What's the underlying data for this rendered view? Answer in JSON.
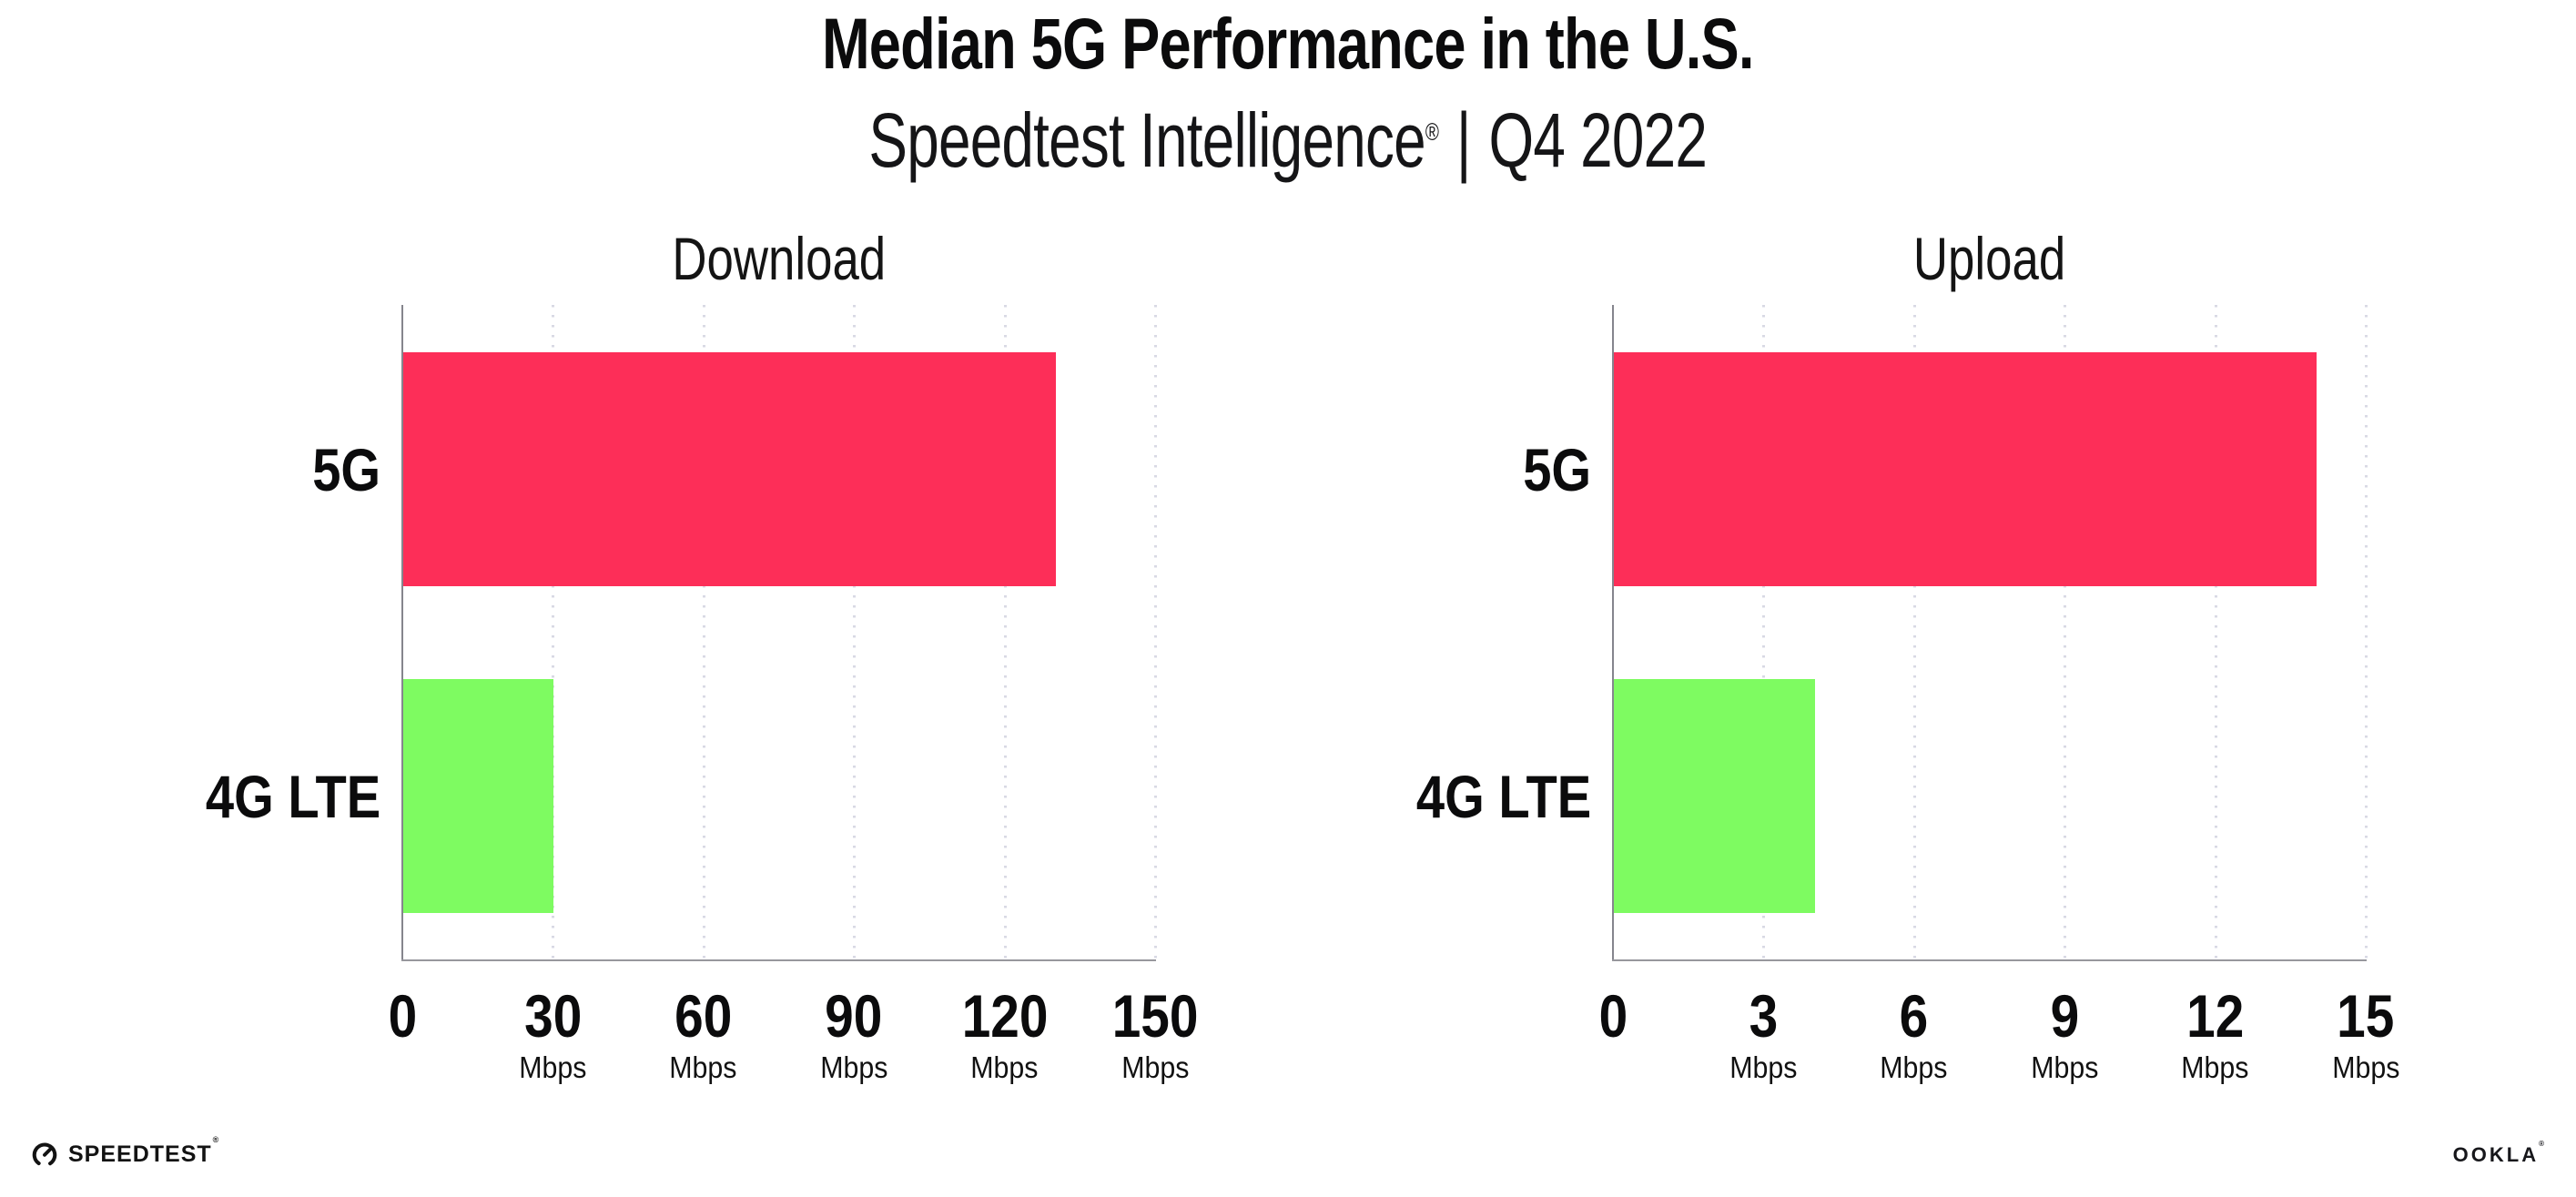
{
  "header": {
    "title": "Median 5G Performance in the U.S.",
    "subtitle_brand": "Speedtest Intelligence",
    "subtitle_reg_mark": "®",
    "subtitle_separator": "|",
    "subtitle_period": "Q4 2022"
  },
  "chart_data": [
    {
      "type": "bar",
      "orientation": "horizontal",
      "title": "Download",
      "categories": [
        "5G",
        "4G LTE"
      ],
      "values": [
        130,
        30
      ],
      "unit": "Mbps",
      "xlim": [
        0,
        150
      ],
      "xticks": [
        0,
        30,
        60,
        90,
        120,
        150
      ],
      "bar_colors": [
        "#fd2e58",
        "#7efb61"
      ],
      "grid": "dotted-vertical",
      "legend": "none"
    },
    {
      "type": "bar",
      "orientation": "horizontal",
      "title": "Upload",
      "categories": [
        "5G",
        "4G LTE"
      ],
      "values": [
        14,
        4
      ],
      "unit": "Mbps",
      "xlim": [
        0,
        15
      ],
      "xticks": [
        0,
        3,
        6,
        9,
        12,
        15
      ],
      "bar_colors": [
        "#fd2e58",
        "#7efb61"
      ],
      "grid": "dotted-vertical",
      "legend": "none"
    }
  ],
  "footer": {
    "speedtest_label": "SPEEDTEST",
    "speedtest_mark": "®",
    "ookla_label": "OOKLA",
    "ookla_mark": "®"
  },
  "colors": {
    "bar_5g": "#fd2e58",
    "bar_4g_lte": "#7efb61",
    "grid_dot": "#d8d9e4",
    "axis_line": "#8b8b93",
    "text": "#0b0b0c"
  }
}
